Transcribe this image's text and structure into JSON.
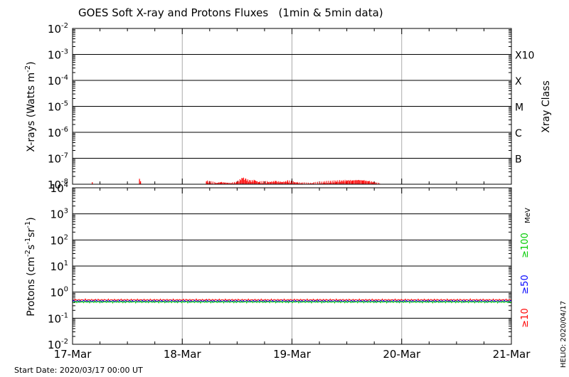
{
  "title": "GOES Soft X-ray and Protons Fluxes   (1min & 5min data)",
  "footer": {
    "start_date": "Start Date: 2020/03/17 00:00 UT",
    "credit": "HELIO: 2020/04/17"
  },
  "colors": {
    "primary": "#ff0000",
    "secondary": "#0000ff",
    "p100": "#00cc00",
    "grid_vertical": "#aaaaaa",
    "axis": "#000000"
  },
  "chart_data": [
    {
      "type": "line",
      "panel": "xrays",
      "xlabel": "",
      "ylabel_main": "X-rays (Watts m",
      "ylabel_exp": "-2",
      "ylabel_close": ")",
      "yscale": "log",
      "ylim": [
        1e-08,
        0.01
      ],
      "y_ticks": [
        {
          "mant": "10",
          "exp": "-2"
        },
        {
          "mant": "10",
          "exp": "-3"
        },
        {
          "mant": "10",
          "exp": "-4"
        },
        {
          "mant": "10",
          "exp": "-5"
        },
        {
          "mant": "10",
          "exp": "-6"
        },
        {
          "mant": "10",
          "exp": "-7"
        },
        {
          "mant": "10",
          "exp": "-8"
        }
      ],
      "right_axis_label": "Xray Class",
      "classes": [
        {
          "label": "X10",
          "flux": 0.001
        },
        {
          "label": "X",
          "flux": 0.0001
        },
        {
          "label": "M",
          "flux": 1e-05
        },
        {
          "label": "C",
          "flux": 1e-06
        },
        {
          "label": "B",
          "flux": 1e-07
        }
      ],
      "series": [
        {
          "color": "#ff0000",
          "x": [
            0.18,
            0.61,
            0.62,
            1.22,
            1.3,
            1.35,
            1.45,
            1.5,
            1.55,
            1.58,
            1.62,
            1.66,
            1.7,
            1.78,
            1.85,
            1.9,
            1.96,
            2.02,
            2.05,
            2.1,
            2.2,
            2.3,
            2.35,
            2.4,
            2.45,
            2.5,
            2.55,
            2.6,
            2.65,
            2.7,
            2.74,
            2.8
          ],
          "y": [
            1.2e-08,
            1.5e-08,
            1.3e-08,
            1.3e-08,
            1.1e-08,
            1.2e-08,
            1.1e-08,
            1.2e-08,
            1.7e-08,
            1.5e-08,
            1.3e-08,
            1.4e-08,
            1.2e-08,
            1.2e-08,
            1.3e-08,
            1.2e-08,
            1.3e-08,
            1.2e-08,
            1.15e-08,
            1.1e-08,
            1.1e-08,
            1.2e-08,
            1.25e-08,
            1.3e-08,
            1.35e-08,
            1.4e-08,
            1.4e-08,
            1.45e-08,
            1.4e-08,
            1.3e-08,
            1.2e-08,
            1.05e-08
          ]
        },
        {
          "color": "#0000ff",
          "x": [
            1.5,
            1.55,
            1.6,
            1.85,
            2.5,
            2.6,
            2.65
          ],
          "y": [
            1.05e-08,
            1.1e-08,
            1.05e-08,
            1.05e-08,
            1.05e-08,
            1.1e-08,
            1.05e-08
          ]
        }
      ]
    },
    {
      "type": "line",
      "panel": "protons",
      "ylabel_main": "Protons (cm",
      "ylabel_exp1": "-2",
      "ylabel_mid1": "s",
      "ylabel_exp2": "-1",
      "ylabel_mid2": "sr",
      "ylabel_exp3": "-1",
      "ylabel_close": ")",
      "yscale": "log",
      "ylim": [
        0.01,
        10000
      ],
      "y_ticks": [
        {
          "mant": "10",
          "exp": "4"
        },
        {
          "mant": "10",
          "exp": "3"
        },
        {
          "mant": "10",
          "exp": "2"
        },
        {
          "mant": "10",
          "exp": "1"
        },
        {
          "mant": "10",
          "exp": "0"
        },
        {
          "mant": "10",
          "exp": "-1"
        },
        {
          "mant": "10",
          "exp": "-2"
        }
      ],
      "threshold": 10,
      "unit_label": "MeV",
      "channels": [
        {
          "label": "≥100",
          "color": "#00cc00"
        },
        {
          "label": "≥50",
          "color": "#0000ff"
        },
        {
          "label": "≥10",
          "color": "#ff0000"
        }
      ],
      "series": [
        {
          "channel": "≥10",
          "color": "#ff0000",
          "x": [
            0,
            1,
            2,
            3,
            4
          ],
          "y": [
            0.5,
            0.5,
            0.5,
            0.5,
            0.5
          ]
        },
        {
          "channel": "≥50",
          "color": "#0000ff",
          "x": [
            0,
            1,
            2,
            3,
            4
          ],
          "y": [
            0.45,
            0.45,
            0.45,
            0.45,
            0.45
          ]
        },
        {
          "channel": "≥100",
          "color": "#00cc00",
          "x": [
            0,
            1,
            2,
            3,
            4
          ],
          "y": [
            0.42,
            0.42,
            0.42,
            0.42,
            0.42
          ]
        }
      ]
    }
  ],
  "x_axis": {
    "categories": [
      "17-Mar",
      "18-Mar",
      "19-Mar",
      "20-Mar",
      "21-Mar"
    ],
    "range_days": [
      0,
      4
    ]
  }
}
